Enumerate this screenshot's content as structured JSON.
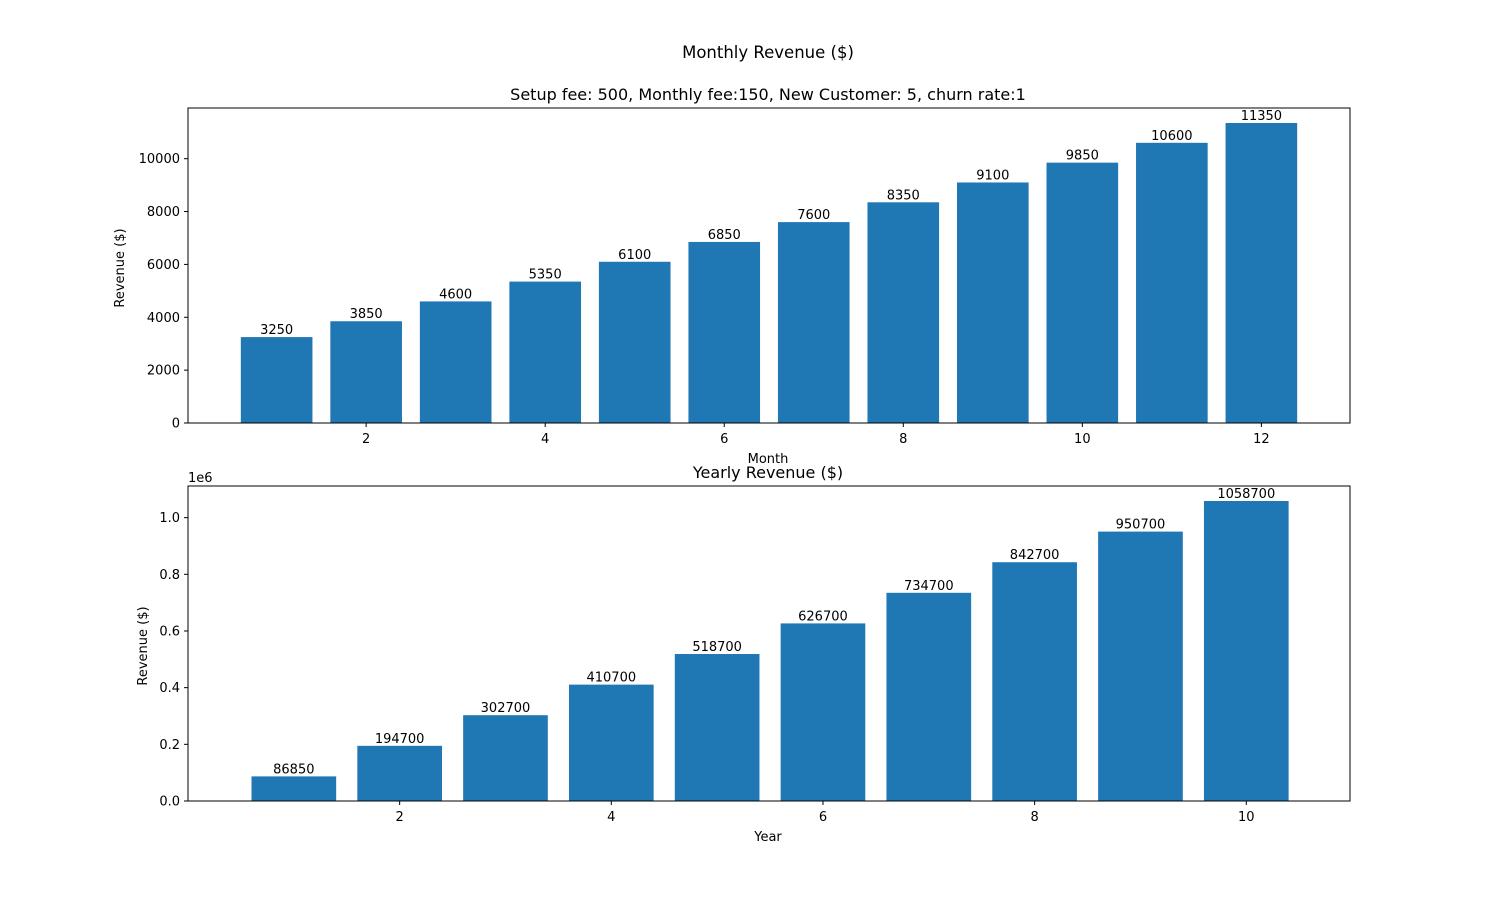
{
  "suptitle": "Monthly Revenue ($)",
  "chart_data": [
    {
      "type": "bar",
      "title": "Setup fee: 500, Monthly fee:150, New Customer: 5, churn rate:1",
      "xlabel": "Month",
      "ylabel": "Revenue ($)",
      "x": [
        1,
        2,
        3,
        4,
        5,
        6,
        7,
        8,
        9,
        10,
        11,
        12
      ],
      "values": [
        3250,
        3850,
        4600,
        5350,
        6100,
        6850,
        7600,
        8350,
        9100,
        9850,
        10600,
        11350
      ],
      "data_labels": [
        "3250",
        "3850",
        "4600",
        "5350",
        "6100",
        "6850",
        "7600",
        "8350",
        "9100",
        "9850",
        "10600",
        "11350"
      ],
      "xlim": [
        0.01,
        12.99
      ],
      "ylim": [
        0,
        11917.5
      ],
      "xticks": [
        2,
        4,
        6,
        8,
        10,
        12
      ],
      "xtick_labels": [
        "2",
        "4",
        "6",
        "8",
        "10",
        "12"
      ],
      "yticks": [
        0,
        2000,
        4000,
        6000,
        8000,
        10000
      ],
      "ytick_labels": [
        "0",
        "2000",
        "4000",
        "6000",
        "8000",
        "10000"
      ],
      "y_offset_label": "",
      "bar_color": "#1f77b4",
      "grid": false,
      "legend": "none"
    },
    {
      "type": "bar",
      "title": "Yearly Revenue ($)",
      "xlabel": "Year",
      "ylabel": "Revenue ($)",
      "x": [
        1,
        2,
        3,
        4,
        5,
        6,
        7,
        8,
        9,
        10
      ],
      "values": [
        86850,
        194700,
        302700,
        410700,
        518700,
        626700,
        734700,
        842700,
        950700,
        1058700
      ],
      "data_labels": [
        "86850",
        "194700",
        "302700",
        "410700",
        "518700",
        "626700",
        "734700",
        "842700",
        "950700",
        "1058700"
      ],
      "xlim": [
        0.0,
        10.98
      ],
      "ylim": [
        0,
        1111635
      ],
      "xticks": [
        2,
        4,
        6,
        8,
        10
      ],
      "xtick_labels": [
        "2",
        "4",
        "6",
        "8",
        "10"
      ],
      "yticks": [
        0,
        200000,
        400000,
        600000,
        800000,
        1000000
      ],
      "ytick_labels": [
        "0.0",
        "0.2",
        "0.4",
        "0.6",
        "0.8",
        "1.0"
      ],
      "y_offset_label": "1e6",
      "bar_color": "#1f77b4",
      "grid": false,
      "legend": "none"
    }
  ]
}
